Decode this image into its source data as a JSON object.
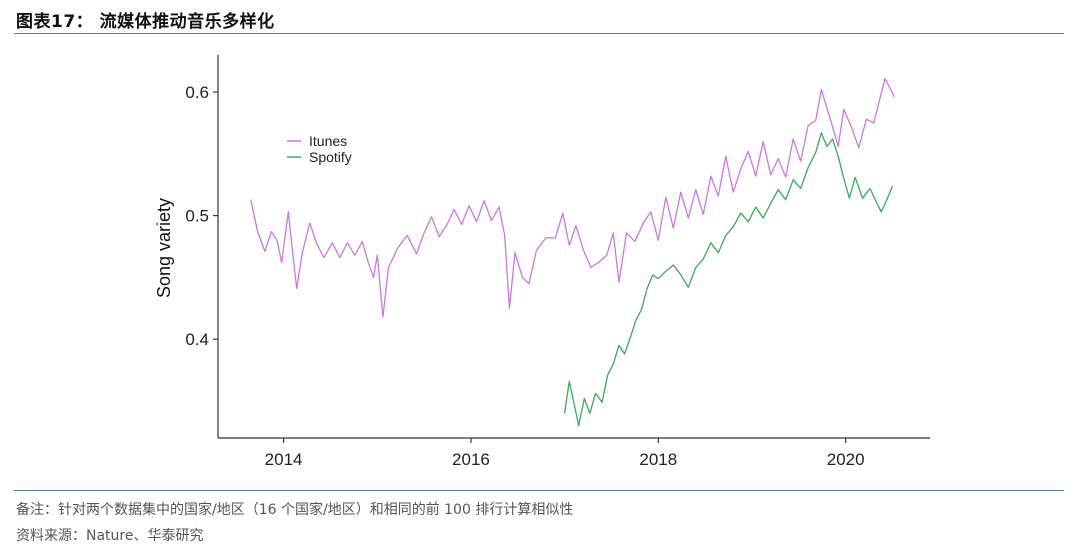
{
  "header": {
    "title": "图表17： 流媒体推动音乐多样化"
  },
  "footer": {
    "note": "备注：针对两个数据集中的国家/地区（16 个国家/地区）和相同的前 100 排行计算相似性",
    "source": "资料来源：Nature、华泰研究"
  },
  "colors": {
    "rule": "#4a7fb0",
    "itunes": "#cc77dd",
    "spotify": "#3aa860"
  },
  "chart_data": {
    "type": "line",
    "title": "",
    "xlabel": "",
    "ylabel": "Song variety",
    "xlim": [
      2013.3,
      2020.9
    ],
    "ylim": [
      0.32,
      0.63
    ],
    "x_ticks": [
      2014,
      2016,
      2018,
      2020
    ],
    "y_ticks": [
      0.4,
      0.5,
      0.6
    ],
    "x_tick_labels": [
      "2014",
      "2016",
      "2018",
      "2020"
    ],
    "y_tick_labels": [
      "0.4",
      "0.5",
      "0.6"
    ],
    "grid": false,
    "legend": {
      "position": "top-left",
      "entries": [
        "Itunes",
        "Spotify"
      ]
    },
    "series": [
      {
        "name": "Itunes",
        "color": "#cc77dd",
        "points": [
          [
            2013.65,
            0.513
          ],
          [
            2013.72,
            0.488
          ],
          [
            2013.8,
            0.471
          ],
          [
            2013.87,
            0.487
          ],
          [
            2013.93,
            0.48
          ],
          [
            2013.98,
            0.462
          ],
          [
            2014.05,
            0.503
          ],
          [
            2014.1,
            0.468
          ],
          [
            2014.14,
            0.441
          ],
          [
            2014.2,
            0.47
          ],
          [
            2014.28,
            0.494
          ],
          [
            2014.35,
            0.478
          ],
          [
            2014.43,
            0.466
          ],
          [
            2014.52,
            0.478
          ],
          [
            2014.6,
            0.466
          ],
          [
            2014.68,
            0.478
          ],
          [
            2014.76,
            0.468
          ],
          [
            2014.84,
            0.479
          ],
          [
            2014.9,
            0.463
          ],
          [
            2014.96,
            0.45
          ],
          [
            2015.0,
            0.468
          ],
          [
            2015.06,
            0.418
          ],
          [
            2015.12,
            0.458
          ],
          [
            2015.22,
            0.474
          ],
          [
            2015.32,
            0.484
          ],
          [
            2015.42,
            0.469
          ],
          [
            2015.5,
            0.486
          ],
          [
            2015.58,
            0.499
          ],
          [
            2015.66,
            0.483
          ],
          [
            2015.74,
            0.492
          ],
          [
            2015.82,
            0.505
          ],
          [
            2015.9,
            0.493
          ],
          [
            2015.98,
            0.508
          ],
          [
            2016.06,
            0.495
          ],
          [
            2016.14,
            0.512
          ],
          [
            2016.22,
            0.496
          ],
          [
            2016.3,
            0.507
          ],
          [
            2016.36,
            0.484
          ],
          [
            2016.41,
            0.425
          ],
          [
            2016.47,
            0.47
          ],
          [
            2016.55,
            0.45
          ],
          [
            2016.62,
            0.445
          ],
          [
            2016.7,
            0.472
          ],
          [
            2016.8,
            0.482
          ],
          [
            2016.9,
            0.482
          ],
          [
            2016.98,
            0.502
          ],
          [
            2017.05,
            0.476
          ],
          [
            2017.12,
            0.492
          ],
          [
            2017.2,
            0.472
          ],
          [
            2017.28,
            0.458
          ],
          [
            2017.36,
            0.462
          ],
          [
            2017.45,
            0.468
          ],
          [
            2017.52,
            0.486
          ],
          [
            2017.58,
            0.446
          ],
          [
            2017.66,
            0.486
          ],
          [
            2017.75,
            0.479
          ],
          [
            2017.84,
            0.494
          ],
          [
            2017.92,
            0.503
          ],
          [
            2018.0,
            0.48
          ],
          [
            2018.08,
            0.515
          ],
          [
            2018.16,
            0.49
          ],
          [
            2018.24,
            0.519
          ],
          [
            2018.32,
            0.498
          ],
          [
            2018.4,
            0.521
          ],
          [
            2018.48,
            0.501
          ],
          [
            2018.56,
            0.532
          ],
          [
            2018.64,
            0.516
          ],
          [
            2018.72,
            0.548
          ],
          [
            2018.8,
            0.519
          ],
          [
            2018.88,
            0.538
          ],
          [
            2018.96,
            0.552
          ],
          [
            2019.04,
            0.532
          ],
          [
            2019.12,
            0.56
          ],
          [
            2019.2,
            0.533
          ],
          [
            2019.28,
            0.546
          ],
          [
            2019.36,
            0.531
          ],
          [
            2019.44,
            0.562
          ],
          [
            2019.52,
            0.544
          ],
          [
            2019.6,
            0.573
          ],
          [
            2019.68,
            0.577
          ],
          [
            2019.74,
            0.602
          ],
          [
            2019.8,
            0.587
          ],
          [
            2019.86,
            0.572
          ],
          [
            2019.92,
            0.556
          ],
          [
            2019.98,
            0.586
          ],
          [
            2020.06,
            0.572
          ],
          [
            2020.14,
            0.555
          ],
          [
            2020.22,
            0.578
          ],
          [
            2020.3,
            0.575
          ],
          [
            2020.36,
            0.593
          ],
          [
            2020.42,
            0.611
          ],
          [
            2020.48,
            0.602
          ],
          [
            2020.52,
            0.596
          ]
        ]
      },
      {
        "name": "Spotify",
        "color": "#3aa860",
        "points": [
          [
            2017.0,
            0.34
          ],
          [
            2017.05,
            0.366
          ],
          [
            2017.1,
            0.348
          ],
          [
            2017.15,
            0.33
          ],
          [
            2017.21,
            0.352
          ],
          [
            2017.27,
            0.34
          ],
          [
            2017.33,
            0.356
          ],
          [
            2017.4,
            0.349
          ],
          [
            2017.46,
            0.371
          ],
          [
            2017.52,
            0.38
          ],
          [
            2017.58,
            0.395
          ],
          [
            2017.64,
            0.388
          ],
          [
            2017.7,
            0.401
          ],
          [
            2017.76,
            0.415
          ],
          [
            2017.82,
            0.424
          ],
          [
            2017.88,
            0.441
          ],
          [
            2017.94,
            0.452
          ],
          [
            2018.0,
            0.449
          ],
          [
            2018.08,
            0.455
          ],
          [
            2018.16,
            0.46
          ],
          [
            2018.24,
            0.452
          ],
          [
            2018.32,
            0.442
          ],
          [
            2018.4,
            0.458
          ],
          [
            2018.48,
            0.465
          ],
          [
            2018.56,
            0.478
          ],
          [
            2018.64,
            0.47
          ],
          [
            2018.72,
            0.484
          ],
          [
            2018.8,
            0.491
          ],
          [
            2018.88,
            0.502
          ],
          [
            2018.96,
            0.495
          ],
          [
            2019.04,
            0.507
          ],
          [
            2019.12,
            0.498
          ],
          [
            2019.2,
            0.51
          ],
          [
            2019.28,
            0.521
          ],
          [
            2019.36,
            0.513
          ],
          [
            2019.44,
            0.529
          ],
          [
            2019.52,
            0.522
          ],
          [
            2019.6,
            0.539
          ],
          [
            2019.68,
            0.551
          ],
          [
            2019.74,
            0.567
          ],
          [
            2019.8,
            0.556
          ],
          [
            2019.86,
            0.562
          ],
          [
            2019.92,
            0.548
          ],
          [
            2019.98,
            0.53
          ],
          [
            2020.04,
            0.514
          ],
          [
            2020.1,
            0.531
          ],
          [
            2020.18,
            0.514
          ],
          [
            2020.26,
            0.522
          ],
          [
            2020.32,
            0.512
          ],
          [
            2020.38,
            0.503
          ],
          [
            2020.44,
            0.513
          ],
          [
            2020.5,
            0.524
          ]
        ]
      }
    ]
  }
}
